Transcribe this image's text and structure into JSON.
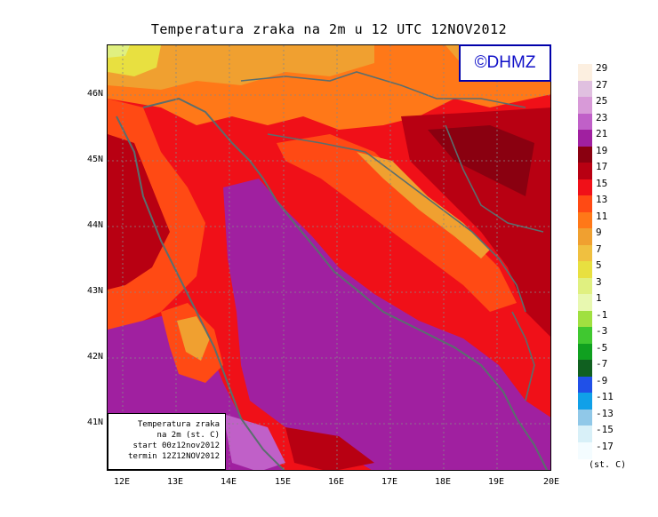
{
  "title": "Temperatura zraka na 2m u 12 UTC 12NOV2012",
  "logo": "©DHMZ",
  "info": {
    "line1": "Temperatura zraka",
    "line2": "na 2m (st. C)",
    "line3": "start 00z12nov2012",
    "line4": "termin 12Z12NOV2012"
  },
  "lat_labels": [
    "46N",
    "45N",
    "44N",
    "43N",
    "42N",
    "41N"
  ],
  "lon_labels": [
    "12E",
    "13E",
    "14E",
    "15E",
    "16E",
    "17E",
    "18E",
    "19E",
    "20E"
  ],
  "legend": {
    "unit": "(st. C)",
    "labels": [
      "29",
      "27",
      "25",
      "23",
      "21",
      "19",
      "17",
      "15",
      "13",
      "11",
      "9",
      "7",
      "5",
      "3",
      "1",
      "-1",
      "-3",
      "-5",
      "-7",
      "-9",
      "-11",
      "-13",
      "-15",
      "-17"
    ],
    "colors": [
      "#fcefe0",
      "#e0c0e0",
      "#d89ad8",
      "#c060c8",
      "#a020a0",
      "#8a0010",
      "#b80012",
      "#f01018",
      "#ff4a14",
      "#ff7818",
      "#f0a030",
      "#f0c040",
      "#e8e040",
      "#e0f080",
      "#e8f8b0",
      "#a0e040",
      "#40c830",
      "#10a020",
      "#106020",
      "#2050e8",
      "#10a0e8",
      "#90c8e8",
      "#d8f0f8",
      "#f4fcff"
    ]
  },
  "colors": {
    "border": "#5a6e6e",
    "logo_text": "#1010c8"
  }
}
